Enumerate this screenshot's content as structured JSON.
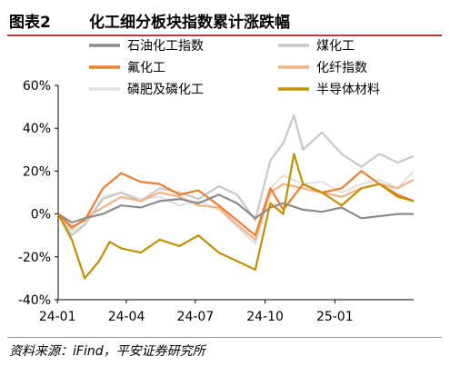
{
  "header": {
    "figure_label": "图表2",
    "title": "化工细分板块指数累计涨跌幅"
  },
  "footer": {
    "source": "资料来源：iFind，平安证券研究所"
  },
  "chart_data": {
    "type": "line",
    "xlabel": "",
    "ylabel": "",
    "y_unit": "%",
    "ylim": [
      -40,
      60
    ],
    "yticks": [
      -40,
      -20,
      0,
      20,
      40,
      60
    ],
    "ytick_labels": [
      "-40%",
      "-20%",
      "0%",
      "20%",
      "40%",
      "60%"
    ],
    "xlim": [
      "2024-01-02",
      "2025-04-15"
    ],
    "xticks": [
      "2024-01-01",
      "2024-04-01",
      "2024-07-01",
      "2024-10-01",
      "2025-01-01"
    ],
    "xtick_labels": [
      "24-01",
      "24-04",
      "24-07",
      "24-10",
      "25-01"
    ],
    "grid": false,
    "legend_position": "top",
    "series": [
      {
        "name": "石油化工指数",
        "color": "#8c8c8c",
        "x": [
          "2024-01-02",
          "2024-01-20",
          "2024-02-06",
          "2024-03-01",
          "2024-03-25",
          "2024-04-20",
          "2024-05-15",
          "2024-06-10",
          "2024-07-05",
          "2024-08-01",
          "2024-08-25",
          "2024-09-18",
          "2024-10-08",
          "2024-10-25",
          "2024-11-20",
          "2024-12-15",
          "2025-01-10",
          "2025-02-05",
          "2025-03-01",
          "2025-03-25",
          "2025-04-15"
        ],
        "values": [
          0,
          -4,
          -2,
          0,
          4,
          3,
          6,
          7,
          5,
          9,
          5,
          -2,
          3,
          5,
          2,
          1,
          3,
          -2,
          -1,
          0,
          0
        ]
      },
      {
        "name": "煤化工",
        "color": "#c8c8c8",
        "x": [
          "2024-01-02",
          "2024-01-20",
          "2024-02-06",
          "2024-03-01",
          "2024-03-25",
          "2024-04-20",
          "2024-05-15",
          "2024-06-10",
          "2024-07-05",
          "2024-08-01",
          "2024-08-25",
          "2024-09-18",
          "2024-10-08",
          "2024-10-25",
          "2024-11-08",
          "2024-11-20",
          "2024-12-15",
          "2025-01-10",
          "2025-02-05",
          "2025-03-01",
          "2025-03-25",
          "2025-04-15"
        ],
        "values": [
          0,
          -10,
          -5,
          7,
          10,
          6,
          12,
          10,
          7,
          13,
          9,
          -3,
          25,
          33,
          46,
          30,
          38,
          28,
          22,
          28,
          24,
          27
        ]
      },
      {
        "name": "氟化工",
        "color": "#ed7d31",
        "x": [
          "2024-01-02",
          "2024-01-20",
          "2024-02-06",
          "2024-03-01",
          "2024-03-25",
          "2024-04-20",
          "2024-05-15",
          "2024-06-10",
          "2024-07-05",
          "2024-08-01",
          "2024-08-25",
          "2024-09-18",
          "2024-10-08",
          "2024-10-25",
          "2024-11-20",
          "2024-12-15",
          "2025-01-10",
          "2025-02-05",
          "2025-03-01",
          "2025-03-25",
          "2025-04-15"
        ],
        "values": [
          0,
          -6,
          -3,
          12,
          19,
          15,
          14,
          9,
          11,
          4,
          -3,
          -10,
          12,
          2,
          14,
          10,
          12,
          20,
          14,
          9,
          6
        ]
      },
      {
        "name": "化纤指数",
        "color": "#f4b183",
        "x": [
          "2024-01-02",
          "2024-01-20",
          "2024-02-06",
          "2024-03-01",
          "2024-03-25",
          "2024-04-20",
          "2024-05-15",
          "2024-06-10",
          "2024-07-05",
          "2024-08-01",
          "2024-08-25",
          "2024-09-18",
          "2024-10-08",
          "2024-10-25",
          "2024-11-20",
          "2024-12-15",
          "2025-01-10",
          "2025-02-05",
          "2025-03-01",
          "2025-03-25",
          "2025-04-15"
        ],
        "values": [
          0,
          -7,
          -2,
          3,
          8,
          6,
          10,
          8,
          4,
          3,
          -5,
          -12,
          10,
          14,
          12,
          10,
          8,
          12,
          14,
          12,
          16
        ]
      },
      {
        "name": "磷肥及磷化工",
        "color": "#e2e2e2",
        "x": [
          "2024-01-02",
          "2024-01-20",
          "2024-02-06",
          "2024-03-01",
          "2024-03-25",
          "2024-04-20",
          "2024-05-15",
          "2024-06-10",
          "2024-07-05",
          "2024-08-01",
          "2024-08-25",
          "2024-09-18",
          "2024-10-08",
          "2024-10-25",
          "2024-11-20",
          "2024-12-15",
          "2025-01-10",
          "2025-02-05",
          "2025-03-01",
          "2025-03-25",
          "2025-04-15"
        ],
        "values": [
          0,
          -8,
          -5,
          8,
          10,
          7,
          8,
          4,
          6,
          2,
          -6,
          -14,
          12,
          18,
          14,
          15,
          10,
          14,
          16,
          12,
          20
        ]
      },
      {
        "name": "半导体材料",
        "color": "#bf9000",
        "x": [
          "2024-01-02",
          "2024-01-20",
          "2024-02-06",
          "2024-02-25",
          "2024-03-10",
          "2024-03-25",
          "2024-04-20",
          "2024-05-15",
          "2024-06-10",
          "2024-07-05",
          "2024-08-01",
          "2024-08-25",
          "2024-09-18",
          "2024-10-08",
          "2024-10-25",
          "2024-11-08",
          "2024-11-20",
          "2024-12-15",
          "2025-01-10",
          "2025-02-05",
          "2025-03-01",
          "2025-03-25",
          "2025-04-15"
        ],
        "values": [
          0,
          -12,
          -30,
          -22,
          -13,
          -16,
          -18,
          -12,
          -15,
          -10,
          -18,
          -22,
          -26,
          5,
          0,
          28,
          14,
          10,
          4,
          12,
          14,
          8,
          6
        ]
      }
    ]
  }
}
